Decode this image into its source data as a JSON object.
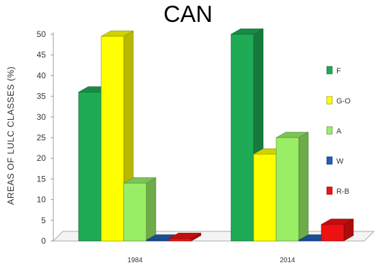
{
  "chart_data": {
    "type": "bar",
    "title": "CAN",
    "ylabel": "AREAS OF LULC CLASSES (%)",
    "xlabel": "",
    "categories": [
      "1984",
      "2014"
    ],
    "ylim": [
      0,
      50
    ],
    "yticks": [
      "0",
      "5",
      "10",
      "15",
      "20",
      "25",
      "30",
      "35",
      "40",
      "45",
      "50"
    ],
    "legend_position": "right",
    "grid": false,
    "series": [
      {
        "name": "F",
        "values": [
          36,
          50
        ],
        "color": "#1faa55"
      },
      {
        "name": "G-O",
        "values": [
          49.5,
          21
        ],
        "color": "#ffff00"
      },
      {
        "name": "A",
        "values": [
          14,
          25
        ],
        "color": "#99ee66"
      },
      {
        "name": "W",
        "values": [
          0.2,
          0.2
        ],
        "color": "#1f5fb4"
      },
      {
        "name": "R-B",
        "values": [
          0.6,
          4
        ],
        "color": "#ee1111"
      }
    ]
  }
}
